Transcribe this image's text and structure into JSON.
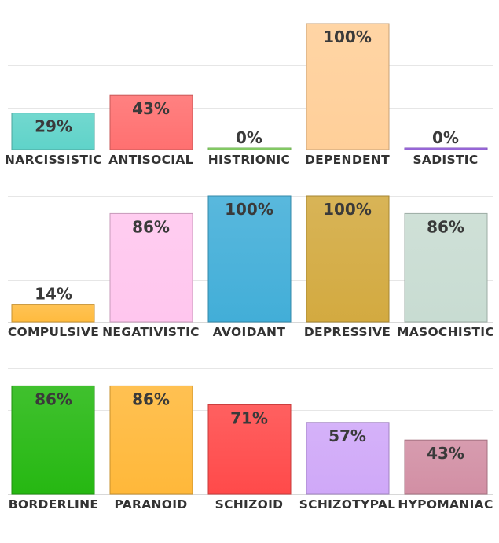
{
  "chart_data": [
    {
      "type": "bar",
      "ylim": [
        0,
        100
      ],
      "grid": true,
      "categories": [
        "NARCISSISTIC",
        "ANTISOCIAL",
        "HISTRIONIC",
        "DEPENDENT",
        "SADISTIC"
      ],
      "values": [
        29,
        43,
        0,
        100,
        0
      ],
      "value_labels": [
        "29%",
        "43%",
        "0%",
        "100%",
        "0%"
      ],
      "colors": [
        "#5fd3c9",
        "#ff7070",
        "#8ee06b",
        "#ffcf99",
        "#a56cf0"
      ]
    },
    {
      "type": "bar",
      "ylim": [
        0,
        100
      ],
      "grid": true,
      "categories": [
        "COMPULSIVE",
        "NEGATIVISTIC",
        "AVOIDANT",
        "DEPRESSIVE",
        "MASOCHISTIC"
      ],
      "values": [
        14,
        86,
        100,
        100,
        86
      ],
      "value_labels": [
        "14%",
        "86%",
        "100%",
        "100%",
        "86%"
      ],
      "colors": [
        "#ffbb3e",
        "#ffc6ee",
        "#42aed8",
        "#d3aa40",
        "#c8dcd2"
      ]
    },
    {
      "type": "bar",
      "ylim": [
        0,
        100
      ],
      "grid": true,
      "categories": [
        "BORDERLINE",
        "PARANOID",
        "SCHIZOID",
        "SCHIZOTYPAL",
        "HYPOMANIAC"
      ],
      "values": [
        86,
        86,
        71,
        57,
        43
      ],
      "value_labels": [
        "86%",
        "86%",
        "71%",
        "57%",
        "43%"
      ],
      "colors": [
        "#26b812",
        "#ffb83a",
        "#ff4a4a",
        "#cfa8f8",
        "#d28fa4"
      ]
    }
  ]
}
